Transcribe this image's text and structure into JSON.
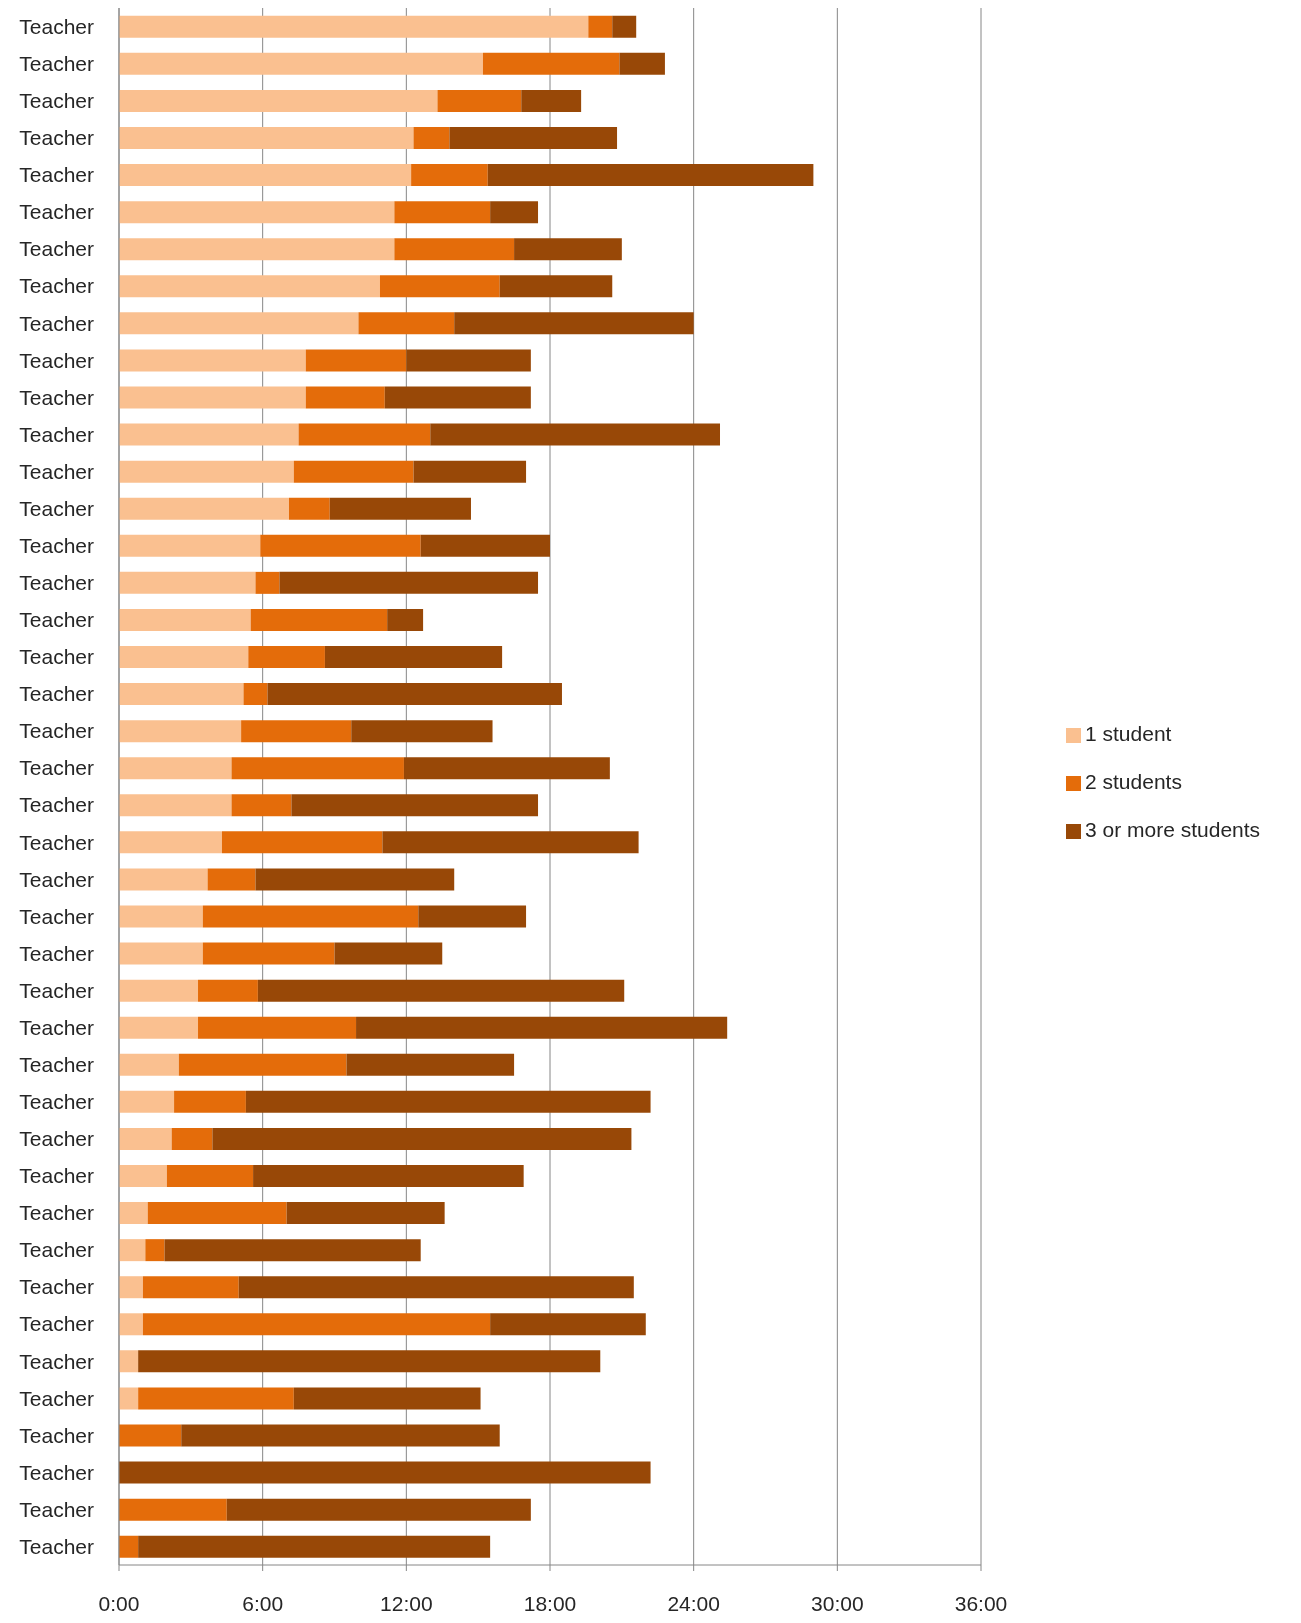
{
  "chart_data": {
    "type": "bar",
    "orientation": "horizontal",
    "stacked": true,
    "categories": [
      "Teacher",
      "Teacher",
      "Teacher",
      "Teacher",
      "Teacher",
      "Teacher",
      "Teacher",
      "Teacher",
      "Teacher",
      "Teacher",
      "Teacher",
      "Teacher",
      "Teacher",
      "Teacher",
      "Teacher",
      "Teacher",
      "Teacher",
      "Teacher",
      "Teacher",
      "Teacher",
      "Teacher",
      "Teacher",
      "Teacher",
      "Teacher",
      "Teacher",
      "Teacher",
      "Teacher",
      "Teacher",
      "Teacher",
      "Teacher",
      "Teacher",
      "Teacher",
      "Teacher",
      "Teacher",
      "Teacher",
      "Teacher",
      "Teacher",
      "Teacher",
      "Teacher",
      "Teacher",
      "Teacher",
      "Teacher"
    ],
    "series": [
      {
        "name": "1 student",
        "color": "#fac090",
        "values": [
          19.6,
          15.2,
          13.3,
          12.3,
          12.2,
          11.5,
          11.5,
          10.9,
          10.0,
          7.8,
          7.8,
          7.5,
          7.3,
          7.1,
          5.9,
          5.7,
          5.5,
          5.4,
          5.2,
          5.1,
          4.7,
          4.7,
          4.3,
          3.7,
          3.5,
          3.5,
          3.3,
          3.3,
          2.5,
          2.3,
          2.2,
          2.0,
          1.2,
          1.1,
          1.0,
          1.0,
          0.8,
          0.8,
          0,
          0,
          0,
          0
        ]
      },
      {
        "name": "2 students",
        "color": "#e46c0a",
        "values": [
          1.0,
          5.7,
          3.5,
          1.5,
          3.2,
          4.0,
          5.0,
          5.0,
          4.0,
          4.2,
          3.3,
          5.5,
          5.0,
          1.7,
          6.7,
          1.0,
          5.7,
          3.2,
          1.0,
          4.6,
          7.2,
          2.5,
          6.7,
          2.0,
          9.0,
          5.5,
          2.5,
          6.6,
          7.0,
          3.0,
          1.7,
          3.6,
          5.8,
          0.8,
          4.0,
          14.5,
          0,
          6.5,
          2.6,
          0,
          4.5,
          0.8
        ]
      },
      {
        "name": "3 or more students",
        "color": "#984807",
        "values": [
          1.0,
          1.9,
          2.5,
          7.0,
          13.6,
          2.0,
          4.5,
          4.7,
          10.0,
          5.2,
          6.1,
          12.1,
          4.7,
          5.9,
          5.4,
          10.8,
          1.5,
          7.4,
          12.3,
          5.9,
          8.6,
          10.3,
          10.7,
          8.3,
          4.5,
          4.5,
          15.3,
          15.5,
          7.0,
          16.9,
          17.5,
          11.3,
          6.6,
          10.7,
          16.5,
          6.5,
          19.3,
          7.8,
          13.3,
          22.2,
          12.7,
          14.7
        ]
      }
    ],
    "xlim": [
      0,
      36
    ],
    "xticks": [
      {
        "value": 0,
        "label": "0:00"
      },
      {
        "value": 6,
        "label": "6:00"
      },
      {
        "value": 12,
        "label": "12:00"
      },
      {
        "value": 18,
        "label": "18:00"
      },
      {
        "value": 24,
        "label": "24:00"
      },
      {
        "value": 30,
        "label": "30:00"
      },
      {
        "value": 36,
        "label": "36:00"
      }
    ],
    "grid": "x",
    "legend": "right"
  }
}
